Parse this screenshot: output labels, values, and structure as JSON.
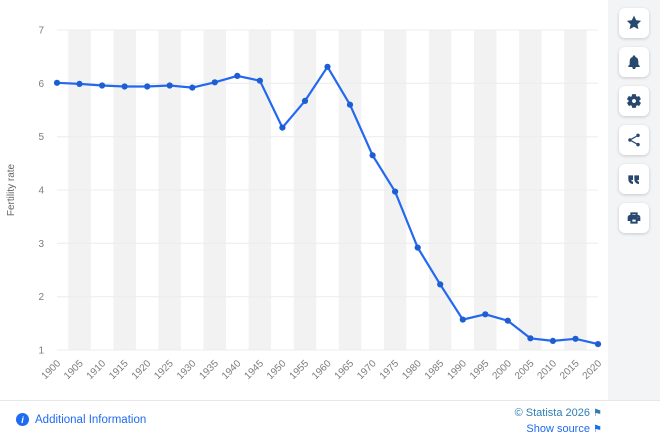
{
  "chart_data": {
    "type": "line",
    "title": "",
    "xlabel": "",
    "ylabel": "Fertility rate",
    "x": [
      "1900",
      "1905",
      "1910",
      "1915",
      "1920",
      "1925",
      "1930",
      "1935",
      "1940",
      "1945",
      "1950",
      "1955",
      "1960",
      "1965",
      "1970",
      "1975",
      "1980",
      "1985",
      "1990",
      "1995",
      "2000",
      "2005",
      "2010",
      "2015",
      "2020"
    ],
    "values": [
      6.01,
      5.99,
      5.96,
      5.94,
      5.94,
      5.96,
      5.92,
      6.02,
      6.14,
      6.05,
      5.17,
      5.67,
      6.31,
      5.6,
      4.65,
      3.97,
      2.92,
      2.23,
      1.57,
      1.67,
      1.55,
      1.22,
      1.17,
      1.21,
      1.11
    ],
    "ylim": [
      1,
      7
    ],
    "yticks": [
      1,
      2,
      3,
      4,
      5,
      6,
      7
    ],
    "grid": true,
    "legend": "none",
    "band_style": "alternating-vertical-stripes"
  },
  "colors": {
    "accent": "#2368f0",
    "point": "#1d5ed3",
    "band": "#f2f2f2",
    "grid": "#ececec",
    "icon": "#27496d",
    "link": "#1f6bf1",
    "copyright": "#2e7eb3",
    "muted": "#7d7d7d",
    "strip_bg": "#f3f4f6"
  },
  "sidebar": {
    "icons": [
      "star-icon",
      "bell-icon",
      "gear-icon",
      "share-icon",
      "quote-icon",
      "print-icon"
    ]
  },
  "footer": {
    "additional_info": "Additional Information",
    "info_glyph": "i",
    "copyright": "© Statista 2026",
    "show_source": "Show source",
    "flag_glyph": "⚑"
  }
}
